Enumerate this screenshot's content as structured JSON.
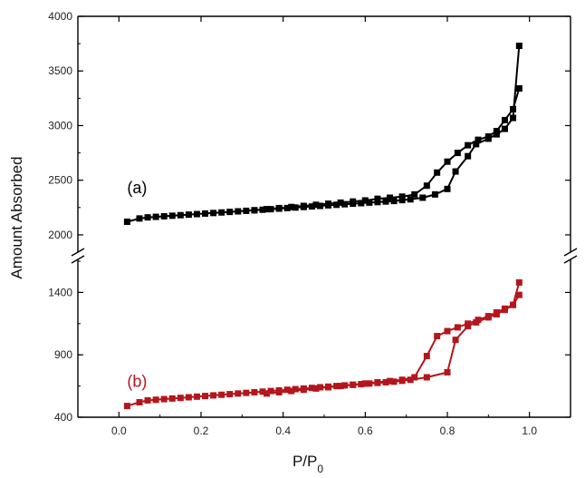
{
  "chart_data": {
    "type": "line",
    "title": "",
    "xlabel_main": "P/P",
    "xlabel_sub": "0",
    "ylabel": "Amount Absorbed",
    "xlim": [
      -0.1,
      1.1
    ],
    "x_ticks": [
      0.0,
      0.2,
      0.4,
      0.6,
      0.8,
      1.0
    ],
    "x_tick_labels": [
      "0.0",
      "0.2",
      "0.4",
      "0.6",
      "0.8",
      "1.0"
    ],
    "y_upper": {
      "range": [
        1850,
        4000
      ],
      "ticks": [
        2000,
        2500,
        3000,
        3500,
        4000
      ],
      "tick_labels": [
        "2000",
        "2500",
        "3000",
        "3500",
        "4000"
      ]
    },
    "y_lower": {
      "range": [
        400,
        1650
      ],
      "ticks": [
        400,
        900,
        1400
      ],
      "tick_labels": [
        "400",
        "900",
        "1400"
      ]
    },
    "axis_break": true,
    "series": [
      {
        "name": "(a)",
        "color": "#000000",
        "panel": "upper",
        "branches": [
          {
            "x": [
              0.02,
              0.05,
              0.07,
              0.09,
              0.11,
              0.13,
              0.15,
              0.17,
              0.19,
              0.21,
              0.23,
              0.25,
              0.27,
              0.29,
              0.31,
              0.33,
              0.35,
              0.37,
              0.39,
              0.41,
              0.43,
              0.45,
              0.47,
              0.49,
              0.51,
              0.53,
              0.55,
              0.57,
              0.59,
              0.61,
              0.63,
              0.65,
              0.67,
              0.69,
              0.71,
              0.74,
              0.77,
              0.8,
              0.82,
              0.85,
              0.87,
              0.9,
              0.92,
              0.94,
              0.96,
              0.975
            ],
            "y": [
              2120,
              2150,
              2160,
              2165,
              2170,
              2175,
              2180,
              2185,
              2190,
              2195,
              2200,
              2205,
              2210,
              2215,
              2220,
              2225,
              2230,
              2235,
              2240,
              2245,
              2250,
              2255,
              2260,
              2265,
              2270,
              2275,
              2280,
              2285,
              2290,
              2295,
              2300,
              2305,
              2310,
              2318,
              2325,
              2340,
              2370,
              2420,
              2580,
              2720,
              2830,
              2880,
              2920,
              2970,
              3070,
              3730
            ]
          },
          {
            "x": [
              0.975,
              0.96,
              0.94,
              0.92,
              0.9,
              0.875,
              0.85,
              0.825,
              0.8,
              0.775,
              0.75,
              0.72,
              0.69,
              0.66,
              0.63,
              0.6,
              0.57,
              0.54,
              0.51,
              0.48,
              0.45,
              0.42,
              0.39,
              0.36,
              0.33
            ],
            "y": [
              3340,
              3150,
              3050,
              2950,
              2900,
              2870,
              2820,
              2750,
              2670,
              2570,
              2450,
              2370,
              2350,
              2340,
              2330,
              2315,
              2305,
              2295,
              2285,
              2275,
              2265,
              2255,
              2245,
              2235,
              2225
            ]
          }
        ]
      },
      {
        "name": "(b)",
        "color": "#b5151d",
        "panel": "lower",
        "branches": [
          {
            "x": [
              0.02,
              0.05,
              0.07,
              0.09,
              0.11,
              0.13,
              0.15,
              0.17,
              0.19,
              0.21,
              0.23,
              0.25,
              0.27,
              0.29,
              0.31,
              0.33,
              0.35,
              0.37,
              0.39,
              0.41,
              0.43,
              0.45,
              0.47,
              0.49,
              0.51,
              0.53,
              0.55,
              0.57,
              0.59,
              0.61,
              0.63,
              0.65,
              0.67,
              0.69,
              0.71,
              0.75,
              0.8,
              0.82,
              0.85,
              0.87,
              0.9,
              0.92,
              0.94,
              0.96,
              0.975
            ],
            "y": [
              490,
              520,
              535,
              540,
              545,
              550,
              555,
              560,
              565,
              570,
              575,
              580,
              585,
              590,
              595,
              600,
              605,
              610,
              615,
              620,
              625,
              630,
              635,
              640,
              645,
              650,
              655,
              660,
              665,
              670,
              675,
              680,
              685,
              692,
              700,
              720,
              760,
              1020,
              1130,
              1160,
              1200,
              1225,
              1260,
              1300,
              1480
            ]
          },
          {
            "x": [
              0.975,
              0.96,
              0.94,
              0.92,
              0.9,
              0.875,
              0.85,
              0.825,
              0.8,
              0.775,
              0.75,
              0.72,
              0.69,
              0.66,
              0.63,
              0.6,
              0.57,
              0.54,
              0.51,
              0.48,
              0.45,
              0.42,
              0.39,
              0.36
            ],
            "y": [
              1380,
              1300,
              1270,
              1240,
              1210,
              1180,
              1150,
              1120,
              1090,
              1050,
              890,
              720,
              700,
              690,
              680,
              670,
              660,
              650,
              640,
              630,
              620,
              610,
              600,
              590
            ]
          }
        ]
      }
    ],
    "annotations": [
      {
        "text": "(a)",
        "color": "#000000",
        "x": 0.02,
        "y": 2380,
        "panel": "upper"
      },
      {
        "text": "(b)",
        "color": "#b5151d",
        "x": 0.02,
        "y": 645,
        "panel": "lower"
      }
    ],
    "grid": false,
    "legend": "none"
  }
}
